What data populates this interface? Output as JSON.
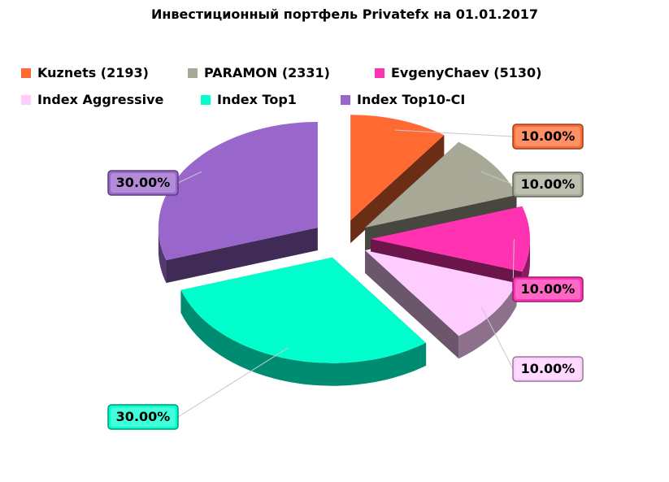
{
  "chart_data": {
    "type": "pie",
    "title": "Инвестиционный портфель Privatefx на 01.01.2017",
    "legend_position": "top",
    "series": [
      {
        "name": "Kuznets (2193)",
        "value": 10,
        "label": "10.00%",
        "color": "#FF6A33"
      },
      {
        "name": "PARAMON (2331)",
        "value": 10,
        "label": "10.00%",
        "color": "#A8A897"
      },
      {
        "name": "EvgenyChaev (5130)",
        "value": 10,
        "label": "10.00%",
        "color": "#FF33B2"
      },
      {
        "name": "Index Aggressive",
        "value": 10,
        "label": "10.00%",
        "color": "#FFCCFF"
      },
      {
        "name": "Index Top1",
        "value": 30,
        "label": "30.00%",
        "color": "#00FFCC"
      },
      {
        "name": "Index Top10-CI",
        "value": 30,
        "label": "30.00%",
        "color": "#9966CC"
      }
    ]
  }
}
